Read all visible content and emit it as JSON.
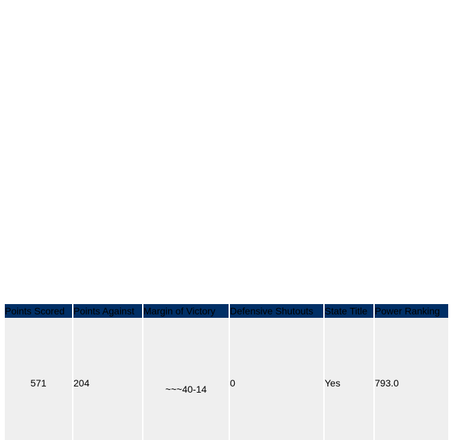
{
  "table": {
    "headers": [
      "Points Scored",
      "Points Against",
      "Margin of Victory",
      "Defensive Shutouts",
      "State Title",
      "Power Ranking"
    ],
    "row": {
      "points_scored": "571",
      "points_against": "204",
      "margin_of_victory": "~~~40-14",
      "defensive_shutouts": "0",
      "state_title": "Yes",
      "power_ranking": "793.0"
    }
  },
  "colors": {
    "header_bg": "#002f66",
    "cell_bg": "#efefef"
  }
}
